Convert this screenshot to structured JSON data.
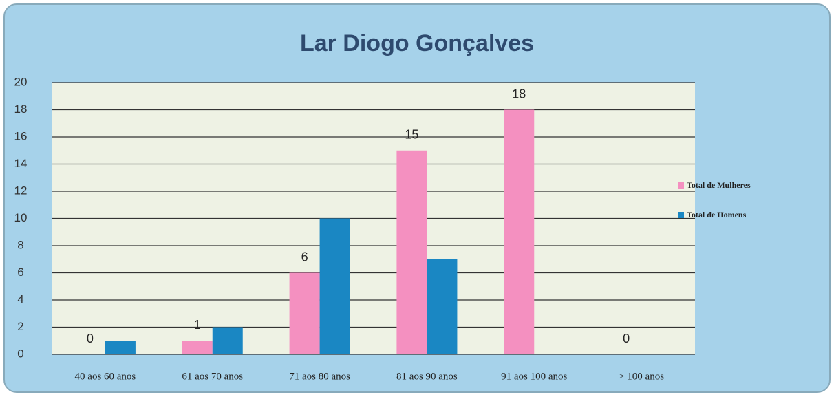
{
  "chart_data": {
    "type": "bar",
    "title": "Lar Diogo Gonçalves",
    "categories": [
      "40 aos 60 anos",
      "61 aos 70 anos",
      "71 aos 80 anos",
      "81 aos 90 anos",
      "91 aos 100 anos",
      "> 100 anos"
    ],
    "series": [
      {
        "name": "Total de Mulheres",
        "color": "#f490c0",
        "values": [
          0,
          1,
          6,
          15,
          18,
          0
        ]
      },
      {
        "name": "Total de Homens",
        "color": "#1a87c3",
        "values": [
          1,
          2,
          10,
          7,
          0,
          0
        ]
      }
    ],
    "ylim": [
      0,
      20
    ],
    "yticks": [
      0,
      2,
      4,
      6,
      8,
      10,
      12,
      14,
      16,
      18,
      20
    ],
    "grid": true,
    "legend": "right"
  }
}
